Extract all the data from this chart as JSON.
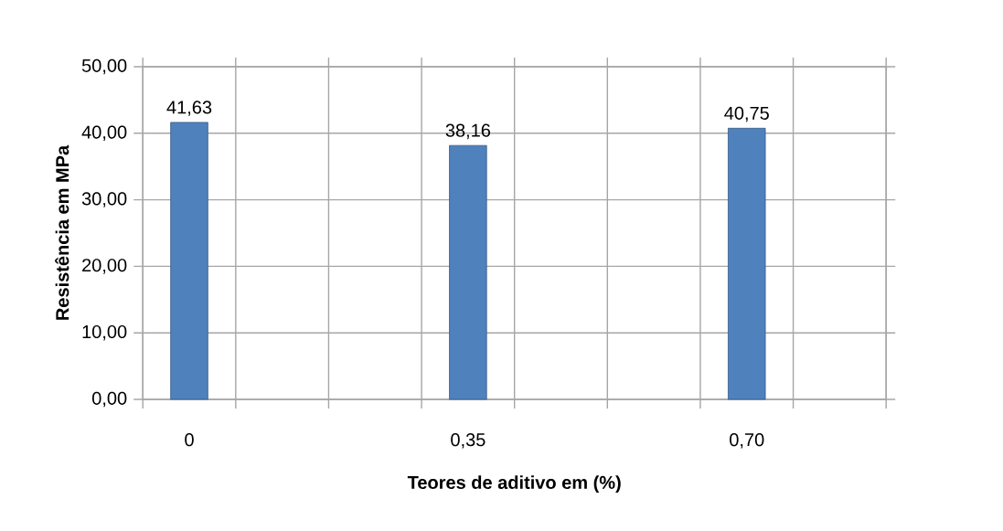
{
  "chart_data": {
    "type": "bar",
    "xlabel": "Teores de aditivo em (%)",
    "ylabel": "Resistência em MPa",
    "categories": [
      "0",
      null,
      null,
      "0,35",
      null,
      null,
      "0,70",
      null
    ],
    "values": [
      41.63,
      null,
      null,
      38.16,
      null,
      null,
      40.75,
      null
    ],
    "value_labels": [
      "41,63",
      null,
      null,
      "38,16",
      null,
      null,
      "40,75",
      null
    ],
    "color": "#4f81bd",
    "ylim": [
      0,
      50
    ],
    "yticks": [
      {
        "value": 0,
        "label": "0,00"
      },
      {
        "value": 10,
        "label": "10,00"
      },
      {
        "value": 20,
        "label": "20,00"
      },
      {
        "value": 30,
        "label": "30,00"
      },
      {
        "value": 40,
        "label": "40,00"
      },
      {
        "value": 50,
        "label": "50,00"
      }
    ],
    "grid": true
  }
}
